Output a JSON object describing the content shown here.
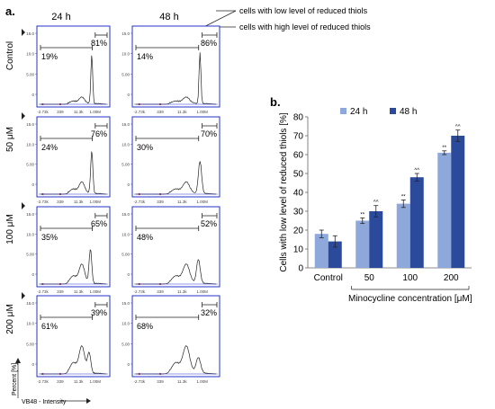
{
  "panel_labels": {
    "a": "a.",
    "b": "b."
  },
  "annotations": {
    "low": "cells with low level of reduced thiols",
    "high": "cells with high level of reduced thiols"
  },
  "flow": {
    "time_labels": [
      "24 h",
      "48 h"
    ],
    "row_labels": [
      "Control",
      "50 μM",
      "100 μM",
      "200 μM"
    ],
    "x_ticks": [
      "-2.73k",
      "339",
      "11.3k",
      "1.00M"
    ],
    "y_ticks": [
      "0",
      "5.00",
      "10.0",
      "15.0"
    ],
    "y_axis_label": "Percent [%]",
    "x_axis_label": "VB48 - Intensity",
    "percentages": [
      {
        "left": [
          "19%",
          "81%"
        ],
        "right": [
          "14%",
          "86%"
        ]
      },
      {
        "left": [
          "24%",
          "76%"
        ],
        "right": [
          "30%",
          "70%"
        ]
      },
      {
        "left": [
          "35%",
          "65%"
        ],
        "right": [
          "48%",
          "52%"
        ]
      },
      {
        "left": [
          "61%",
          "39%"
        ],
        "right": [
          "68%",
          "32%"
        ]
      }
    ],
    "colors": {
      "frame": "#2433c9",
      "trace": "#222222",
      "marker": "#e03030"
    }
  },
  "chart_data": {
    "type": "bar",
    "categories": [
      "Control",
      "50",
      "100",
      "200"
    ],
    "series": [
      {
        "name": "24 h",
        "values": [
          18,
          25,
          34,
          61
        ],
        "errors": [
          2,
          1.5,
          2,
          1
        ],
        "color": "#8fa8dc",
        "sig": [
          "",
          "**",
          "**",
          "**"
        ]
      },
      {
        "name": "48 h",
        "values": [
          14,
          30,
          48,
          70
        ],
        "errors": [
          3,
          3,
          2,
          3
        ],
        "color": "#2b4a9b",
        "sig": [
          "",
          "^^",
          "^^",
          "^^"
        ]
      }
    ],
    "ylabel": "Cells with low level of reduced thiols [%]",
    "xlabel": "Minocycline concentration [μM]",
    "ylim": [
      0,
      80
    ],
    "yticks": [
      0,
      10,
      20,
      30,
      40,
      50,
      60,
      70,
      80
    ],
    "legend": "top"
  }
}
